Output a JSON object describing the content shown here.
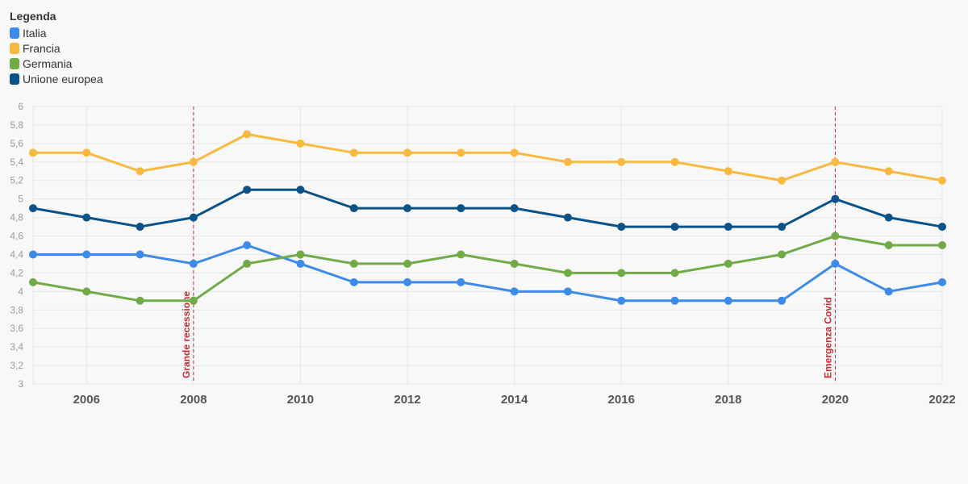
{
  "legend": {
    "title": "Legenda",
    "items": [
      {
        "label": "Italia",
        "color": "#3d8be8"
      },
      {
        "label": "Francia",
        "color": "#f9b940"
      },
      {
        "label": "Germania",
        "color": "#71ab47"
      },
      {
        "label": "Unione europea",
        "color": "#0a5288"
      }
    ]
  },
  "chart_data": {
    "type": "line",
    "title": "",
    "xlabel": "",
    "ylabel": "",
    "x": [
      2005,
      2006,
      2007,
      2008,
      2009,
      2010,
      2011,
      2012,
      2013,
      2014,
      2015,
      2016,
      2017,
      2018,
      2019,
      2020,
      2021,
      2022
    ],
    "xlim": [
      2005,
      2022
    ],
    "ylim": [
      3,
      6
    ],
    "y_ticks": [
      "3",
      "3,2",
      "3,4",
      "3,6",
      "3,8",
      "4",
      "4,2",
      "4,4",
      "4,6",
      "4,8",
      "5",
      "5,2",
      "5,4",
      "5,6",
      "5,8",
      "6"
    ],
    "x_ticks": [
      "2006",
      "2008",
      "2010",
      "2012",
      "2014",
      "2016",
      "2018",
      "2020",
      "2022"
    ],
    "grid": true,
    "legend_position": "top-left",
    "series": [
      {
        "name": "Italia",
        "color": "#3d8be8",
        "values": [
          4.4,
          4.4,
          4.4,
          4.3,
          4.5,
          4.3,
          4.1,
          4.1,
          4.1,
          4.0,
          4.0,
          3.9,
          3.9,
          3.9,
          3.9,
          4.3,
          4.0,
          4.1
        ]
      },
      {
        "name": "Francia",
        "color": "#f9b940",
        "values": [
          5.5,
          5.5,
          5.3,
          5.4,
          5.7,
          5.6,
          5.5,
          5.5,
          5.5,
          5.5,
          5.4,
          5.4,
          5.4,
          5.3,
          5.2,
          5.4,
          5.3,
          5.2
        ]
      },
      {
        "name": "Germania",
        "color": "#71ab47",
        "values": [
          4.1,
          4.0,
          3.9,
          3.9,
          4.3,
          4.4,
          4.3,
          4.3,
          4.4,
          4.3,
          4.2,
          4.2,
          4.2,
          4.3,
          4.4,
          4.6,
          4.5,
          4.5
        ]
      },
      {
        "name": "Unione europea",
        "color": "#0a5288",
        "values": [
          4.9,
          4.8,
          4.7,
          4.8,
          5.1,
          5.1,
          4.9,
          4.9,
          4.9,
          4.9,
          4.8,
          4.7,
          4.7,
          4.7,
          4.7,
          5.0,
          4.8,
          4.7
        ]
      }
    ],
    "annotations": [
      {
        "x": 2008,
        "label": "Grande recessione",
        "color": "#cc2a36"
      },
      {
        "x": 2020,
        "label": "Emergenza Covid",
        "color": "#cc2a36"
      }
    ]
  }
}
